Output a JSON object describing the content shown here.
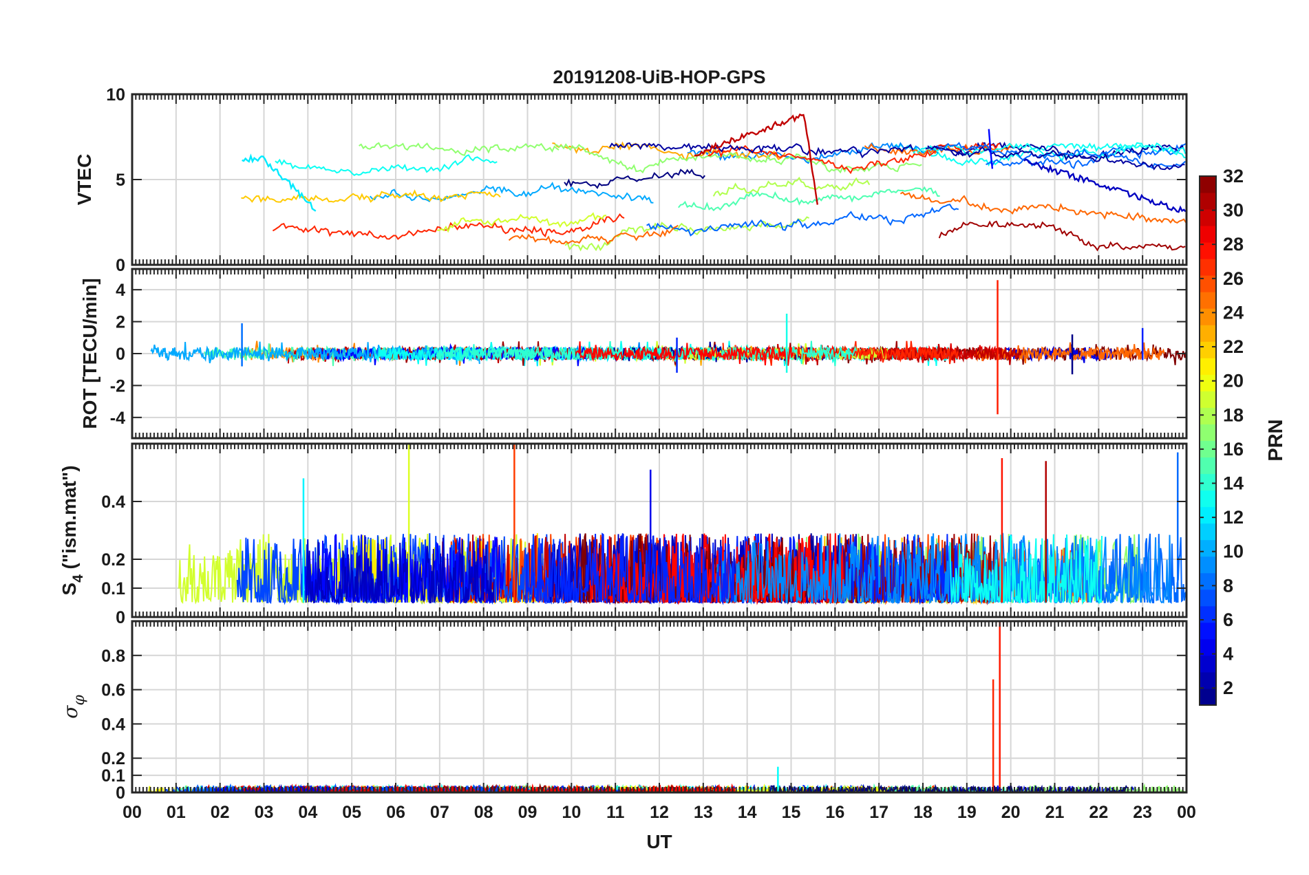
{
  "chart_data": {
    "type": "line",
    "title": "20191208-UiB-HOP-GPS",
    "xlabel": "UT",
    "x_ticks": [
      "00",
      "01",
      "02",
      "03",
      "04",
      "05",
      "06",
      "07",
      "08",
      "09",
      "10",
      "11",
      "12",
      "13",
      "14",
      "15",
      "16",
      "17",
      "18",
      "19",
      "20",
      "21",
      "22",
      "23",
      "00"
    ],
    "xlim": [
      0,
      24
    ],
    "grid": true,
    "colorbar": {
      "label": "PRN",
      "range": [
        1,
        32
      ],
      "ticks": [
        "2",
        "4",
        "6",
        "8",
        "10",
        "12",
        "14",
        "16",
        "18",
        "20",
        "22",
        "24",
        "26",
        "28",
        "30",
        "32"
      ],
      "tick_values": [
        2,
        4,
        6,
        8,
        10,
        12,
        14,
        16,
        18,
        20,
        22,
        24,
        26,
        28,
        30,
        32
      ],
      "colormap": "jet"
    },
    "panels": [
      {
        "id": "vtec",
        "ylabel": "VTEC",
        "ylim": [
          0,
          10
        ],
        "y_ticks": [
          "0",
          "5",
          "10"
        ],
        "y_tick_values": [
          0,
          5,
          10
        ],
        "typical_range": [
          1,
          9
        ],
        "features": [
          {
            "prn": 30,
            "t_start": 12.8,
            "t_end": 15.6,
            "start_value": 6.5,
            "peak_value": 8.8,
            "peak_t": 15.3
          },
          {
            "prn": 12,
            "t_start": 2.5,
            "t_end": 4.2,
            "start_value": 6.2,
            "peak_value": 6.2,
            "peak_t": 3.0
          },
          {
            "prn": 5,
            "t_start": 19.5,
            "t_end": 19.6,
            "start_value": 8.0,
            "peak_value": 8.0,
            "peak_t": 19.5
          },
          {
            "prn": 3,
            "t_start": 20.3,
            "t_end": 24.0,
            "start_value": 6.1,
            "peak_value": 6.1,
            "peak_t": 20.3
          }
        ]
      },
      {
        "id": "rot",
        "ylabel": "ROT [TECU/min]",
        "ylim": [
          -5.3,
          5.3
        ],
        "y_ticks": [
          "-4",
          "-2",
          "0",
          "2",
          "4"
        ],
        "y_tick_values": [
          -4,
          -2,
          0,
          2,
          4
        ],
        "typical_range": [
          -0.4,
          0.4
        ],
        "features": [
          {
            "t": 19.7,
            "max": 4.6,
            "min": -3.8
          },
          {
            "t": 14.9,
            "max": 2.5,
            "min": -1.2
          },
          {
            "t": 2.5,
            "max": 1.9,
            "min": -0.8
          },
          {
            "t": 12.4,
            "max": 1.0,
            "min": -1.2
          },
          {
            "t": 23.0,
            "max": 1.6,
            "min": -0.4
          },
          {
            "t": 21.4,
            "max": 1.2,
            "min": -1.3
          }
        ]
      },
      {
        "id": "s4",
        "ylabel": "S4 (\"ism.mat\")",
        "ylabel_main": "S",
        "ylabel_sub": "4",
        "ylabel_rest": " (\"ism.mat\")",
        "ylim": [
          0,
          0.6
        ],
        "y_ticks": [
          "0",
          "0.1",
          "0.2",
          "0.4"
        ],
        "y_tick_values": [
          0,
          0.1,
          0.2,
          0.4
        ],
        "typical_range": [
          0.05,
          0.25
        ],
        "features": [
          {
            "t": 6.3,
            "max": 0.6
          },
          {
            "t": 8.7,
            "max": 0.6
          },
          {
            "t": 19.8,
            "max": 0.55
          },
          {
            "t": 20.8,
            "max": 0.54
          },
          {
            "t": 23.8,
            "max": 0.57
          },
          {
            "t": 11.8,
            "max": 0.51
          },
          {
            "t": 3.9,
            "max": 0.48
          }
        ]
      },
      {
        "id": "sigma_phi",
        "ylabel": "σφ",
        "ylabel_main": "σ",
        "ylabel_sub": "φ",
        "ylim": [
          0,
          1
        ],
        "y_ticks": [
          "0",
          "0.1",
          "0.2",
          "0.4",
          "0.6",
          "0.8"
        ],
        "y_tick_values": [
          0,
          0.1,
          0.2,
          0.4,
          0.6,
          0.8
        ],
        "typical_range": [
          0,
          0.04
        ],
        "features": [
          {
            "t": 19.75,
            "max": 1.0
          },
          {
            "t": 19.6,
            "max": 0.66
          },
          {
            "t": 14.7,
            "max": 0.15
          }
        ]
      }
    ]
  }
}
